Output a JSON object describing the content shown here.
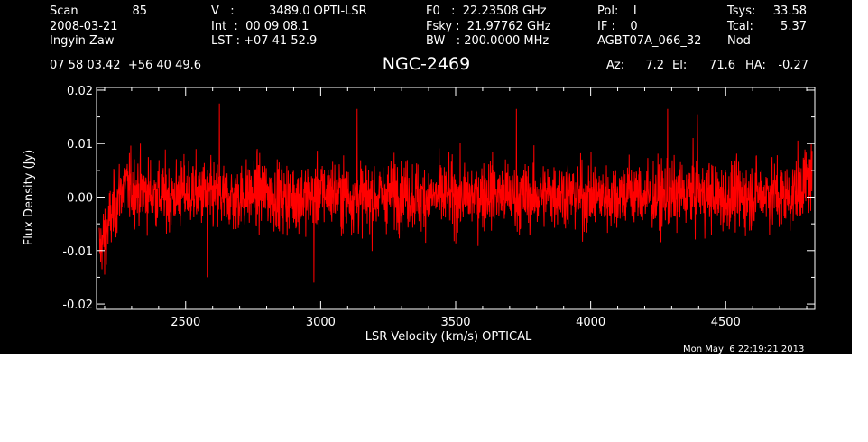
{
  "header": {
    "col1": {
      "scan_label": "Scan",
      "scan_value": "85",
      "date": "2008-03-21",
      "observer": "Ingyin Zaw"
    },
    "col2": {
      "v_label": "V   :",
      "v_value": "3489.0 OPTI-LSR",
      "int_line": "Int  :  00 09 08.1",
      "lst_line": "LST : +07 41 52.9"
    },
    "col3": {
      "f0_line": "F0   :  22.23508 GHz",
      "fsky_line": "Fsky :  21.97762 GHz",
      "bw_line": "BW   : 200.0000 MHz"
    },
    "col4": {
      "pol_line": "Pol:    I",
      "if_line": "IF :    0",
      "project": "AGBT07A_066_32"
    },
    "col5": {
      "tsys_label": "Tsys:",
      "tsys_value": "33.58",
      "tcal_label": "Tcal:",
      "tcal_value": "5.37",
      "mode": "Nod"
    },
    "coords": "07 58 03.42  +56 40 49.6",
    "source": "NGC-2469",
    "pointing": {
      "az_label": "Az:",
      "az_value": "7.2",
      "el_label": "El:",
      "el_value": "71.6",
      "ha_label": "HA:",
      "ha_value": "-0.27"
    },
    "timestamp": "Mon May  6 22:19:21 2013"
  },
  "colors": {
    "background": "#000000",
    "axes": "#ffffff",
    "trace": "#ff0000"
  },
  "chart_data": {
    "type": "line",
    "title": "NGC-2469",
    "xlabel": "LSR Velocity (km/s) OPTICAL",
    "ylabel": "Flux Density (Jy)",
    "xlim": [
      2170,
      4830
    ],
    "ylim": [
      -0.021,
      0.0205
    ],
    "x_ticks": [
      2500,
      3000,
      3500,
      4000,
      4500
    ],
    "y_ticks": [
      -0.02,
      -0.01,
      0.0,
      0.01,
      0.02
    ],
    "y_tick_labels": [
      "-0.02",
      "-0.01",
      "0.00",
      "0.01",
      "0.02"
    ],
    "grid": false,
    "series": [
      {
        "x_start": 2180,
        "x_end": 4820,
        "noise_rms": 0.0045,
        "values_approx": [
          -0.01,
          0.002,
          0.001,
          0.0,
          0.001,
          0.0,
          0.0,
          0.001,
          0.0,
          0.0,
          0.001,
          0.0,
          0.0,
          0.001,
          0.0,
          0.0,
          0.0,
          0.001,
          0.0,
          0.0,
          0.001,
          0.0,
          0.0,
          0.001,
          0.0,
          0.0,
          0.001,
          0.0,
          0.0,
          0.001,
          0.0,
          0.004
        ],
        "extremes": [
          {
            "x": 2580,
            "y": -0.015
          },
          {
            "x": 2625,
            "y": 0.0175
          },
          {
            "x": 2975,
            "y": -0.016
          },
          {
            "x": 3135,
            "y": 0.0165
          },
          {
            "x": 3725,
            "y": 0.0165
          },
          {
            "x": 4285,
            "y": 0.0165
          },
          {
            "x": 4395,
            "y": 0.0155
          },
          {
            "x": 2200,
            "y": -0.0145
          }
        ]
      }
    ]
  }
}
